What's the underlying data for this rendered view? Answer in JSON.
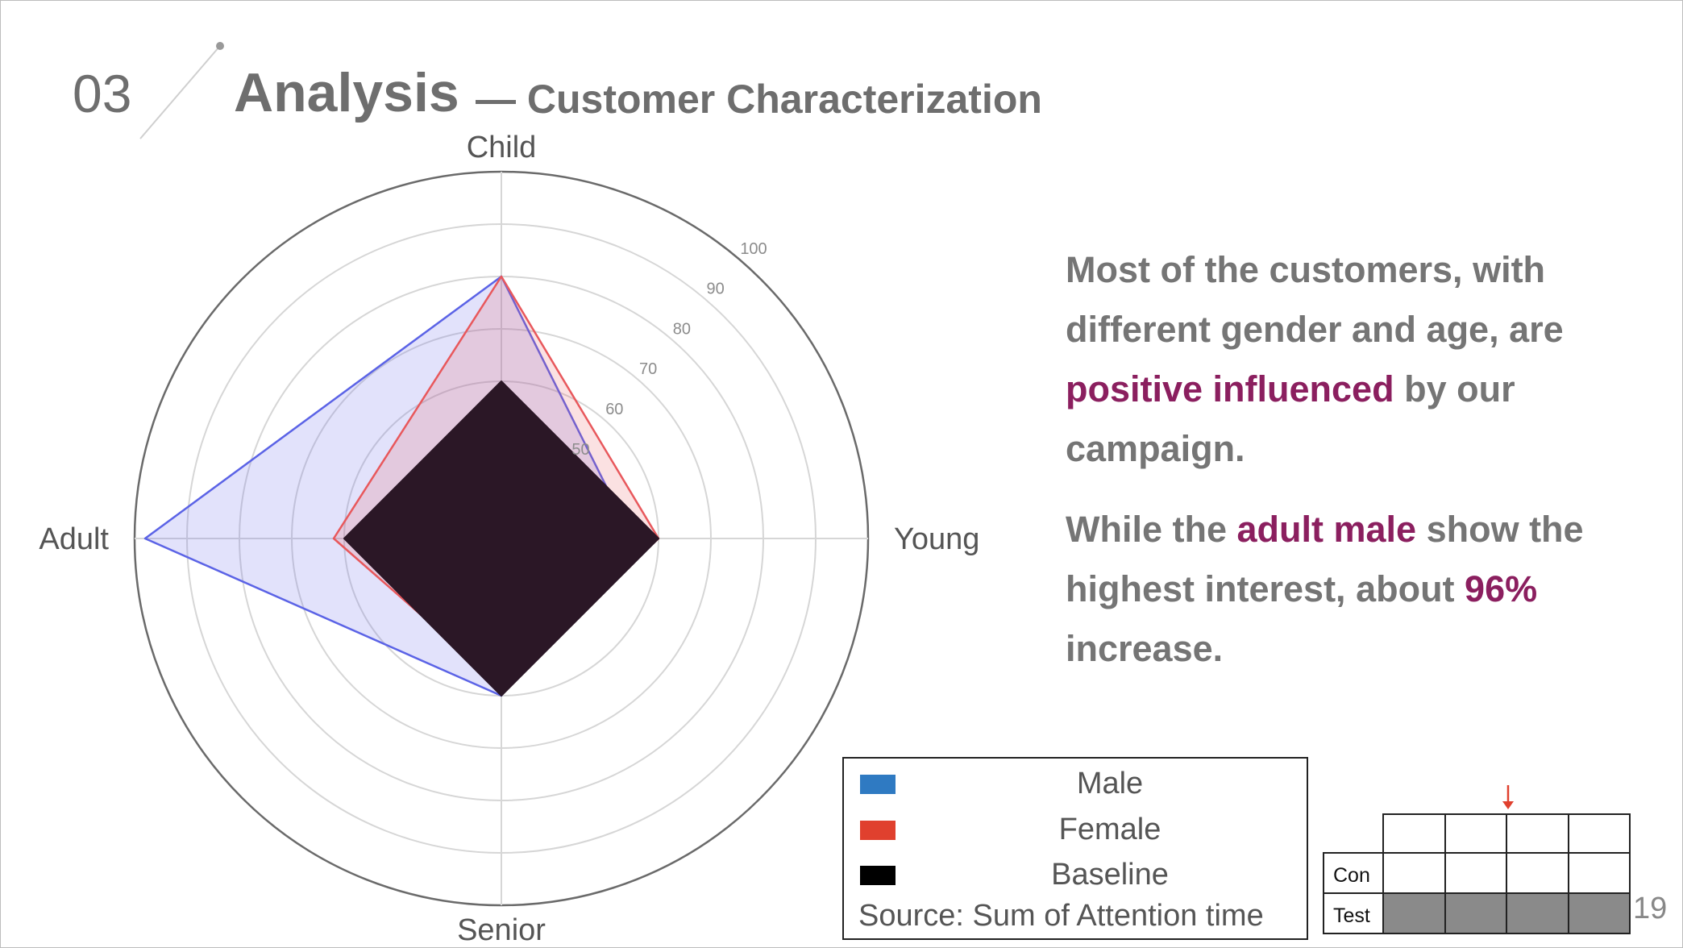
{
  "header": {
    "number": "03",
    "title": "Analysis",
    "subtitle": "— Customer Characterization"
  },
  "colors": {
    "male": "#5b63e6",
    "female": "#e8585c",
    "baseline": "#2b1726",
    "highlight": "#8b1f5f",
    "legend_male": "#2f7ac2",
    "legend_female": "#e0402e",
    "legend_baseline": "#000000"
  },
  "chart_data": {
    "type": "radar",
    "axes": [
      "Child",
      "Young",
      "Senior",
      "Adult"
    ],
    "r_ticks": [
      "50",
      "60",
      "70",
      "80",
      "90",
      "100"
    ],
    "series": [
      {
        "name": "Male",
        "values": [
          80,
          55,
          60,
          98
        ]
      },
      {
        "name": "Female",
        "values": [
          80,
          60,
          58,
          62
        ]
      },
      {
        "name": "Baseline",
        "values": [
          60,
          60,
          60,
          60
        ]
      }
    ]
  },
  "callout": {
    "p1_a": "Most of the customers, with different gender and age, are ",
    "p1_hl": "positive influenced",
    "p1_b": " by our campaign.",
    "p2_a": "While the ",
    "p2_hl1": "adult male",
    "p2_b": " show the highest interest, about ",
    "p2_hl2": "96%",
    "p2_c": " increase."
  },
  "legend": {
    "items": [
      "Male",
      "Female",
      "Baseline"
    ],
    "source": "Source: Sum of Attention time"
  },
  "mini_table": {
    "rows": [
      "Con",
      "Test"
    ]
  },
  "page_number": "19"
}
